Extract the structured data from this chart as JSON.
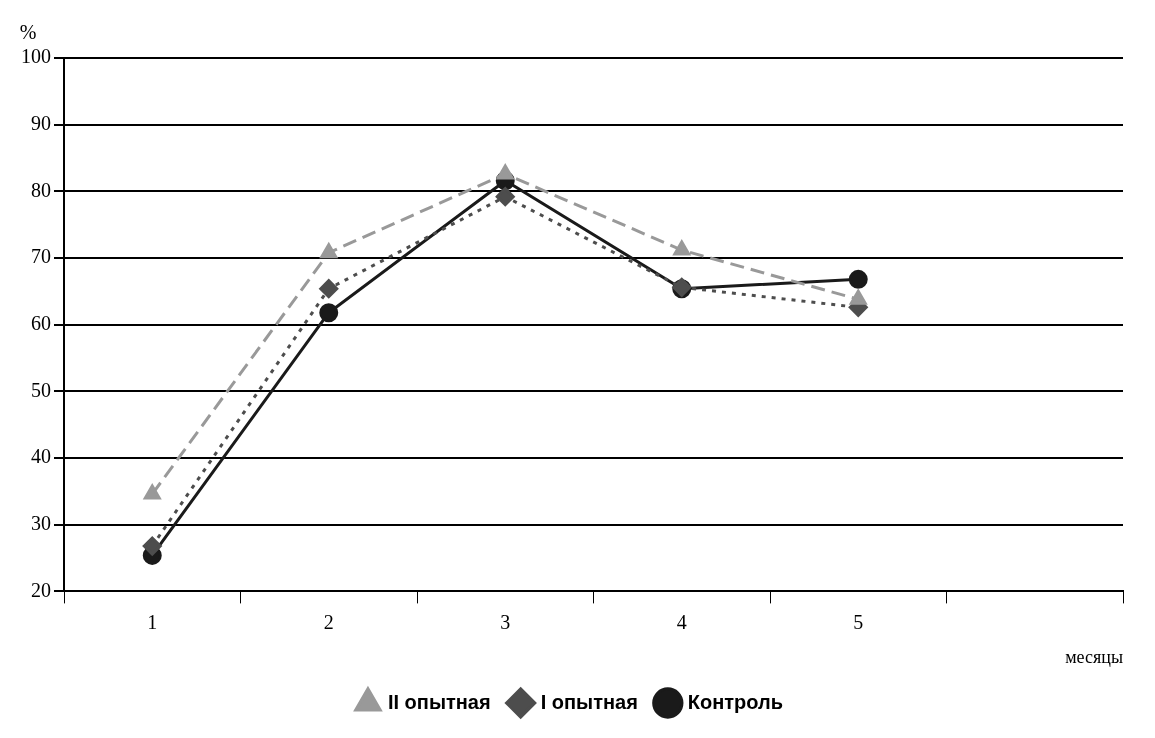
{
  "chart_data": {
    "type": "line",
    "ylabel": "%",
    "xlabel": "месяцы",
    "categories": [
      "1",
      "2",
      "3",
      "4",
      "5",
      null
    ],
    "series": [
      {
        "name": "Контроль",
        "color": "#1a1a1a",
        "marker": "circle",
        "line_style": "solid",
        "values": [
          25.4,
          61.8,
          81.6,
          65.4,
          66.8,
          null
        ]
      },
      {
        "name": "I опытная",
        "color": "#4d4d4d",
        "marker": "diamond",
        "line_style": "dotted",
        "values": [
          26.8,
          65.4,
          79.2,
          65.6,
          62.6,
          null
        ]
      },
      {
        "name": "II опытная",
        "color": "#999999",
        "marker": "triangle",
        "line_style": "dashed",
        "values": [
          34.6,
          70.8,
          82.6,
          71.2,
          63.8,
          null
        ]
      }
    ],
    "ylim": [
      20,
      100
    ],
    "yticks": [
      20,
      30,
      40,
      50,
      60,
      70,
      80,
      90,
      100
    ],
    "grid": "y",
    "legend": "bottom"
  }
}
